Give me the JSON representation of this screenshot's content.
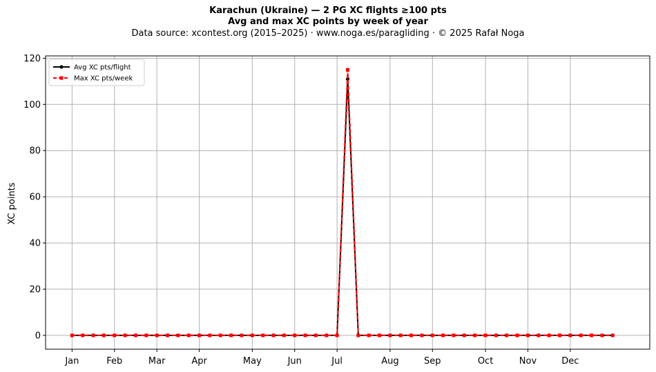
{
  "chart_data": {
    "type": "line",
    "title": "Karachun (Ukraine)  —  2 PG XC flights ≥100 pts",
    "subtitle": "Avg and max XC points by week of year",
    "source": "Data source: xcontest.org (2015–2025)  ·  www.noga.es/paragliding  ·  © 2025 Rafał Noga",
    "ylabel": "XC points",
    "xlabel": "",
    "ylim": [
      -6,
      121
    ],
    "yticks": [
      0,
      20,
      40,
      60,
      80,
      100,
      120
    ],
    "xlim": [
      -2.5,
      54.5
    ],
    "xticks": [
      {
        "week": 0,
        "label": "Jan"
      },
      {
        "week": 4,
        "label": "Feb"
      },
      {
        "week": 8,
        "label": "Mar"
      },
      {
        "week": 12,
        "label": "Apr"
      },
      {
        "week": 17,
        "label": "May"
      },
      {
        "week": 21,
        "label": "Jun"
      },
      {
        "week": 25,
        "label": "Jul"
      },
      {
        "week": 30,
        "label": "Aug"
      },
      {
        "week": 34,
        "label": "Sep"
      },
      {
        "week": 39,
        "label": "Oct"
      },
      {
        "week": 43,
        "label": "Nov"
      },
      {
        "week": 47,
        "label": "Dec"
      }
    ],
    "grid": true,
    "legend_position": "top-left",
    "x": [
      0,
      1,
      2,
      3,
      4,
      5,
      6,
      7,
      8,
      9,
      10,
      11,
      12,
      13,
      14,
      15,
      16,
      17,
      18,
      19,
      20,
      21,
      22,
      23,
      24,
      25,
      26,
      27,
      28,
      29,
      30,
      31,
      32,
      33,
      34,
      35,
      36,
      37,
      38,
      39,
      40,
      41,
      42,
      43,
      44,
      45,
      46,
      47,
      48,
      49,
      50,
      51
    ],
    "series": [
      {
        "name": "Avg XC pts/flight",
        "color": "#000000",
        "marker": "circle",
        "style": "solid",
        "values": [
          0,
          0,
          0,
          0,
          0,
          0,
          0,
          0,
          0,
          0,
          0,
          0,
          0,
          0,
          0,
          0,
          0,
          0,
          0,
          0,
          0,
          0,
          0,
          0,
          0,
          0,
          111,
          0,
          0,
          0,
          0,
          0,
          0,
          0,
          0,
          0,
          0,
          0,
          0,
          0,
          0,
          0,
          0,
          0,
          0,
          0,
          0,
          0,
          0,
          0,
          0,
          0
        ]
      },
      {
        "name": "Max XC pts/week",
        "color": "#ff0000",
        "marker": "square",
        "style": "dashed",
        "values": [
          0,
          0,
          0,
          0,
          0,
          0,
          0,
          0,
          0,
          0,
          0,
          0,
          0,
          0,
          0,
          0,
          0,
          0,
          0,
          0,
          0,
          0,
          0,
          0,
          0,
          0,
          115,
          0,
          0,
          0,
          0,
          0,
          0,
          0,
          0,
          0,
          0,
          0,
          0,
          0,
          0,
          0,
          0,
          0,
          0,
          0,
          0,
          0,
          0,
          0,
          0,
          0
        ]
      }
    ]
  }
}
